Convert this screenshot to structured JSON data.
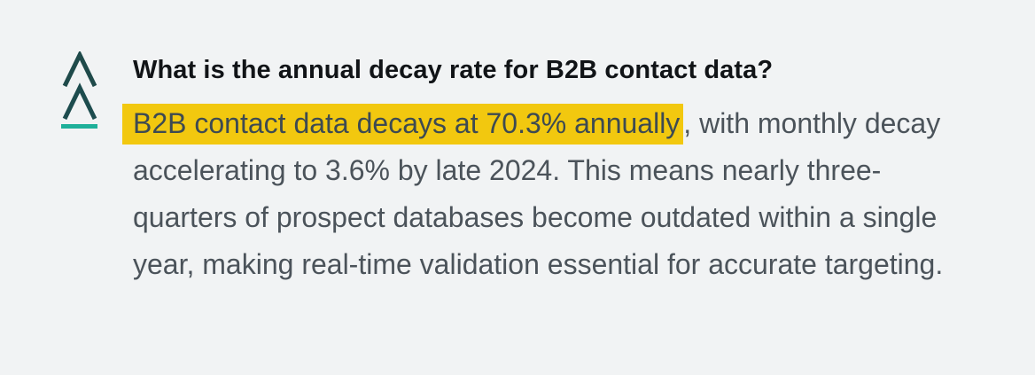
{
  "brand": {
    "logo_icon": "double-chevron-up-logo-icon",
    "colors": {
      "upper_chevron": "#1f4a4a",
      "lower_chevron": "#1d4c4e",
      "underline": "#1fb09a"
    }
  },
  "faq": {
    "question": "What is the annual decay rate for B2B contact data?",
    "answer_highlight": "B2B contact data decays at 70.3% annually",
    "answer_rest": ", with monthly decay accelerating to 3.6% by late 2024. This means nearly three-quarters of prospect databases become outdated within a single year, making real-time validation essential for accurate targeting.",
    "highlight_color": "#f2c80f"
  }
}
